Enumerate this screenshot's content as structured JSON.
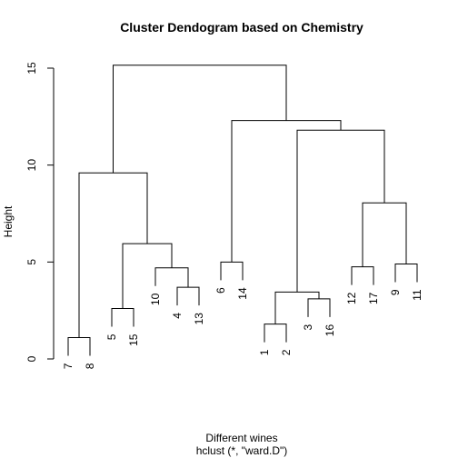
{
  "chart_data": {
    "type": "dendrogram",
    "title": "Cluster Dendogram based on Chemistry",
    "xlabel": "Different wines",
    "sub": "hclust (*, \"ward.D\")",
    "ylabel": "Height",
    "ylim": [
      0,
      15
    ],
    "yticks": [
      0,
      5,
      10,
      15
    ],
    "leaf_order": [
      "7",
      "8",
      "5",
      "15",
      "10",
      "4",
      "13",
      "6",
      "14",
      "1",
      "2",
      "3",
      "16",
      "12",
      "17",
      "9",
      "11"
    ],
    "merges": [
      {
        "id": "a",
        "left": "7",
        "right": "8",
        "height": 1.1
      },
      {
        "id": "b",
        "left": "5",
        "right": "15",
        "height": 2.6
      },
      {
        "id": "c",
        "left": "4",
        "right": "13",
        "height": 3.7
      },
      {
        "id": "d",
        "left": "10",
        "right": "c",
        "height": 4.7
      },
      {
        "id": "e",
        "left": "b",
        "right": "d",
        "height": 5.95
      },
      {
        "id": "f",
        "left": "a",
        "right": "e",
        "height": 9.6
      },
      {
        "id": "g",
        "left": "6",
        "right": "14",
        "height": 5.0
      },
      {
        "id": "h",
        "left": "1",
        "right": "2",
        "height": 1.8
      },
      {
        "id": "i",
        "left": "3",
        "right": "16",
        "height": 3.1
      },
      {
        "id": "j",
        "left": "h",
        "right": "i",
        "height": 3.45
      },
      {
        "id": "k",
        "left": "12",
        "right": "17",
        "height": 4.75
      },
      {
        "id": "l",
        "left": "9",
        "right": "11",
        "height": 4.9
      },
      {
        "id": "m",
        "left": "k",
        "right": "l",
        "height": 8.05
      },
      {
        "id": "n",
        "left": "j",
        "right": "m",
        "height": 11.8
      },
      {
        "id": "o",
        "left": "g",
        "right": "n",
        "height": 12.3
      },
      {
        "id": "p",
        "left": "f",
        "right": "o",
        "height": 15.15
      }
    ],
    "colors": {
      "line": "#000000",
      "background": "#ffffff"
    }
  }
}
